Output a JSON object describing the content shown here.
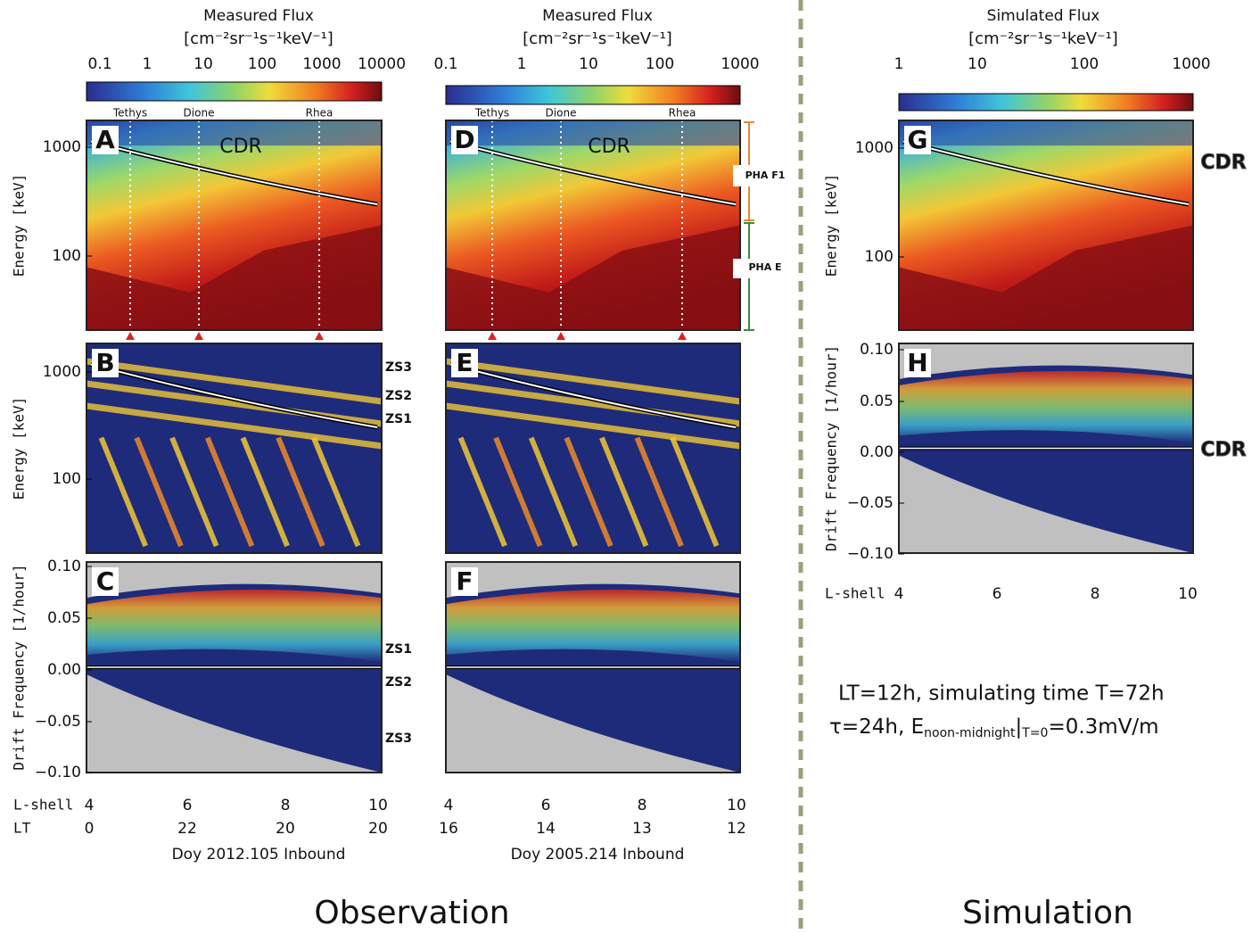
{
  "columns": [
    {
      "colorbar": {
        "title": "Measured Flux",
        "units": "[cm⁻²sr⁻¹s⁻¹keV⁻¹]",
        "ticks": [
          "0.1",
          "1",
          "10",
          "100",
          "1000",
          "10000"
        ]
      },
      "moons": [
        "Tethys",
        "Dione",
        "Rhea"
      ],
      "panels": [
        {
          "label": "A",
          "y_axis": "Energy [keV]",
          "yticks": [
            "1000",
            "100"
          ],
          "annotations": [
            "CDR"
          ]
        },
        {
          "label": "B",
          "y_axis": "Energy [keV]",
          "yticks": [
            "1000",
            "100"
          ],
          "annotations": [
            "ZS3",
            "ZS2",
            "ZS1"
          ]
        },
        {
          "label": "C",
          "y_axis": "Drift Frequency [1/hour]",
          "yticks": [
            "0.10",
            "0.05",
            "0.00",
            "−0.05",
            "−0.10"
          ],
          "annotations": [
            "ZS1",
            "ZS2",
            "ZS3"
          ]
        }
      ],
      "x_rows": [
        {
          "name": "L-shell",
          "values": [
            "4",
            "6",
            "8",
            "10"
          ]
        },
        {
          "name": "LT",
          "values": [
            "0",
            "22",
            "20",
            "20"
          ]
        }
      ],
      "caption": "Doy 2012.105 Inbound"
    },
    {
      "colorbar": {
        "title": "Measured Flux",
        "units": "[cm⁻²sr⁻¹s⁻¹keV⁻¹]",
        "ticks": [
          "0.1",
          "1",
          "10",
          "100",
          "1000"
        ]
      },
      "moons": [
        "Tethys",
        "Dione",
        "Rhea"
      ],
      "pha": [
        "PHA F1",
        "PHA E"
      ],
      "panels": [
        {
          "label": "D",
          "annotations": [
            "CDR"
          ]
        },
        {
          "label": "E",
          "annotations": []
        },
        {
          "label": "F",
          "annotations": []
        }
      ],
      "x_rows": [
        {
          "values": [
            "4",
            "6",
            "8",
            "10"
          ]
        },
        {
          "values": [
            "16",
            "14",
            "13",
            "12"
          ]
        }
      ],
      "caption": "Doy 2005.214 Inbound"
    },
    {
      "colorbar": {
        "title": "Simulated Flux",
        "units": "[cm⁻²sr⁻¹s⁻¹keV⁻¹]",
        "ticks": [
          "1",
          "10",
          "100",
          "1000"
        ]
      },
      "panels": [
        {
          "label": "G",
          "y_axis": "Energy [keV]",
          "yticks": [
            "1000",
            "100"
          ],
          "annotations": [
            "CDR"
          ]
        },
        {
          "label": "H",
          "y_axis": "Drift Frequency [1/hour]",
          "yticks": [
            "0.10",
            "0.05",
            "0.00",
            "−0.05",
            "−0.10"
          ],
          "annotations": [
            "CDR"
          ]
        }
      ],
      "x_rows": [
        {
          "name": "L-shell",
          "values": [
            "4",
            "6",
            "8",
            "10"
          ]
        }
      ]
    }
  ],
  "simulation_note": {
    "line1": "LT=12h, simulating time T=72h",
    "line2_start": "τ=24h, E",
    "line2_sub1": "noon-midnight",
    "line2_bar": "|",
    "line2_sub2": "T=0",
    "line2_end": "=0.3mV/m"
  },
  "sections": {
    "left": "Observation",
    "right": "Simulation"
  }
}
